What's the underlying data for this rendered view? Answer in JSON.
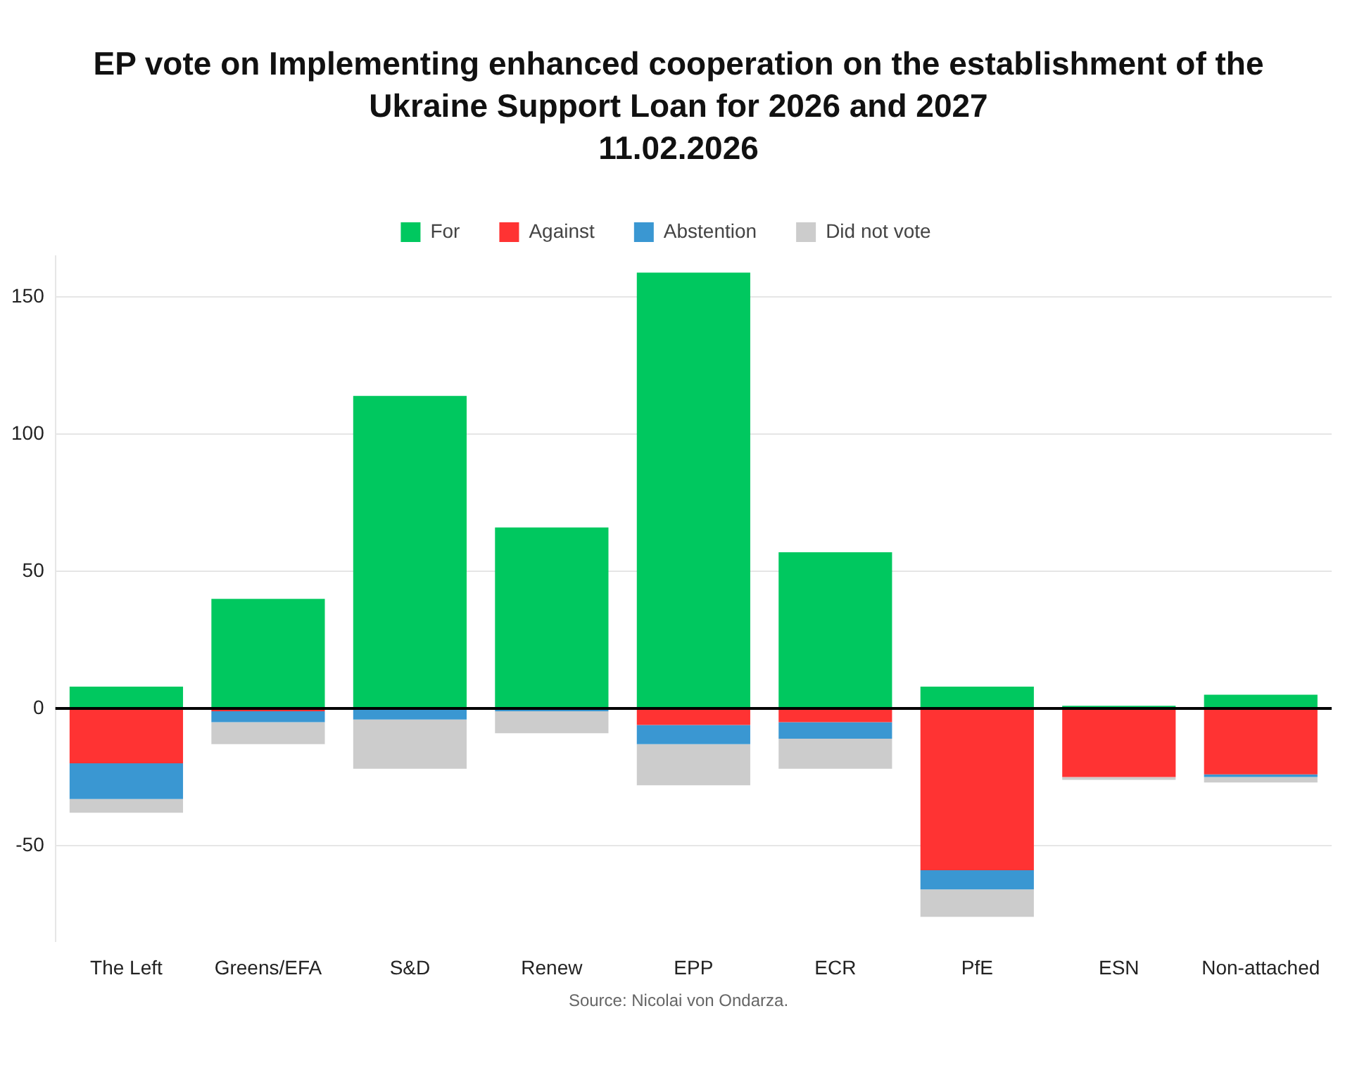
{
  "chart_data": {
    "type": "bar",
    "stacked": true,
    "title": "EP vote on Implementing enhanced cooperation on the establishment of the Ukraine Support Loan for 2026 and 2027\n11.02.2026",
    "categories": [
      "The Left",
      "Greens/EFA",
      "S&D",
      "Renew",
      "EPP",
      "ECR",
      "PfE",
      "ESN",
      "Non-attached"
    ],
    "series": [
      {
        "name": "For",
        "color": "#00c85f",
        "values": [
          8,
          40,
          114,
          66,
          159,
          57,
          8,
          1,
          5
        ]
      },
      {
        "name": "Against",
        "color": "#ff3333",
        "values": [
          -20,
          -1,
          0,
          0,
          -6,
          -5,
          -59,
          -25,
          -24
        ]
      },
      {
        "name": "Abstention",
        "color": "#3a97d2",
        "values": [
          -13,
          -4,
          -4,
          -1,
          -7,
          -6,
          -7,
          0,
          -1
        ]
      },
      {
        "name": "Did not vote",
        "color": "#cccccc",
        "values": [
          -5,
          -8,
          -18,
          -8,
          -15,
          -11,
          -10,
          -1,
          -2
        ]
      }
    ],
    "ylim": [
      -85,
      165
    ],
    "yticks": [
      -50,
      0,
      50,
      100,
      150
    ],
    "grid": "y",
    "legend": "top",
    "annotations": [
      "Source: Nicolai von Ondarza."
    ]
  }
}
